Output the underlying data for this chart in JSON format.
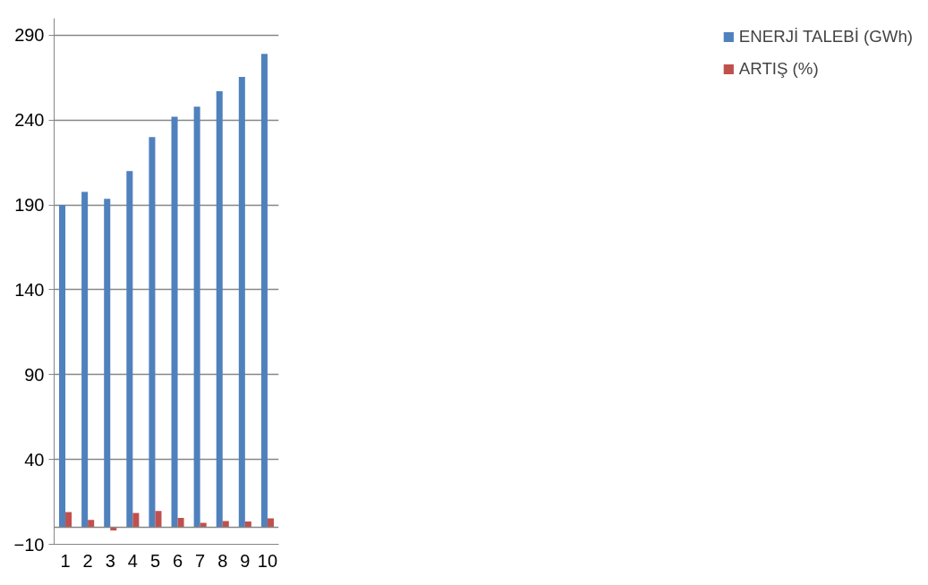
{
  "chart_data": {
    "type": "bar",
    "categories": [
      "1",
      "2",
      "3",
      "4",
      "5",
      "6",
      "7",
      "8",
      "9",
      "10"
    ],
    "series": [
      {
        "name": "ENERJİ TALEBİ (GWh)",
        "color": "#4f81bd",
        "values": [
          190,
          197.7,
          193.7,
          210,
          230,
          242,
          248,
          257,
          265.5,
          279
        ]
      },
      {
        "name": "ARTIŞ (%)",
        "color": "#c0504d",
        "values": [
          9,
          4.4,
          -1.8,
          8.5,
          9.7,
          5.5,
          2.6,
          3.7,
          3.5,
          5.3
        ]
      }
    ],
    "ylim": [
      -10,
      300
    ],
    "yticks": [
      -10,
      40,
      90,
      140,
      190,
      240,
      290
    ],
    "ref_lines": [
      {
        "axis": "y",
        "value": 0,
        "label": null
      }
    ],
    "grid": "y",
    "legend": "right"
  }
}
